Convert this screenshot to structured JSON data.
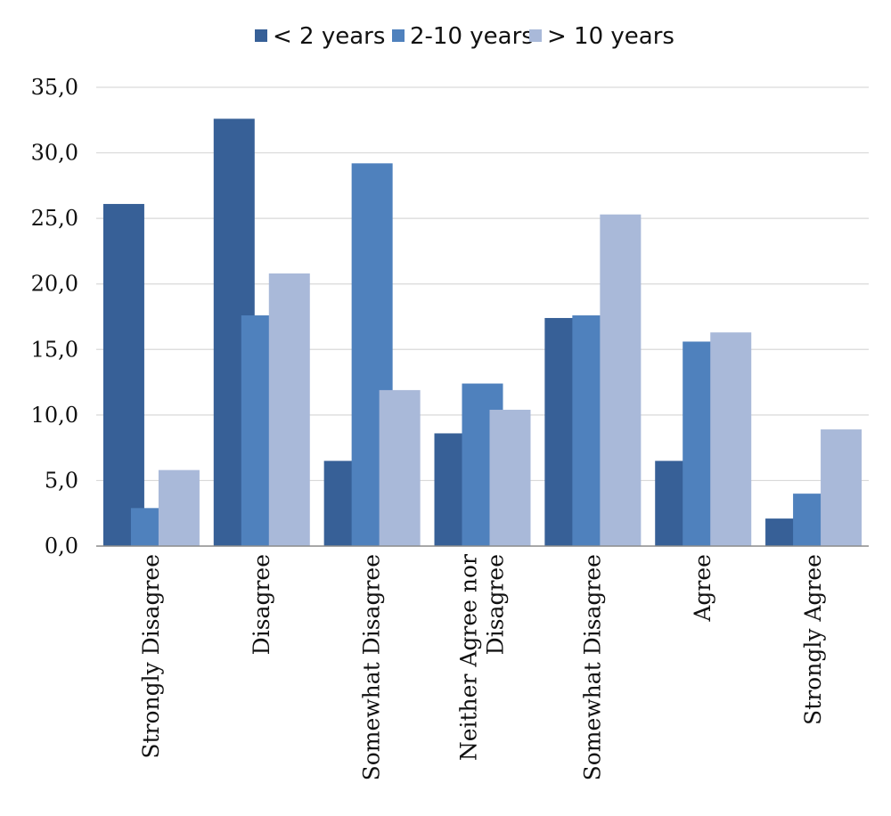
{
  "chart_data": {
    "type": "bar",
    "categories": [
      "Strongly Disagree",
      "Disagree",
      "Somewhat Disagree",
      "Neither Agree nor Disagree",
      "Somewhat  Disagree",
      "Agree",
      "Strongly Agree"
    ],
    "category_lines": [
      [
        "Strongly Disagree"
      ],
      [
        "Disagree"
      ],
      [
        "Somewhat Disagree"
      ],
      [
        "Neither Agree nor",
        "Disagree"
      ],
      [
        "Somewhat  Disagree"
      ],
      [
        "Agree"
      ],
      [
        "Strongly Agree"
      ]
    ],
    "series": [
      {
        "name": "< 2 years",
        "color": "#376097",
        "values": [
          26.1,
          32.6,
          6.5,
          8.6,
          17.4,
          6.5,
          2.1
        ]
      },
      {
        "name": "2-10 years",
        "color": "#4f81bd",
        "values": [
          2.9,
          17.6,
          29.2,
          12.4,
          17.6,
          15.6,
          4.0
        ]
      },
      {
        "name": "> 10 years",
        "color": "#a9b9d9",
        "values": [
          5.8,
          20.8,
          11.9,
          10.4,
          25.3,
          16.3,
          8.9
        ]
      }
    ],
    "ylim": [
      0,
      35
    ],
    "yticks": [
      "0,0",
      "5,0",
      "10,0",
      "15,0",
      "20,0",
      "25,0",
      "30,0",
      "35,0"
    ],
    "grid": true,
    "legend_position": "top-center",
    "title": "",
    "xlabel": "",
    "ylabel": ""
  }
}
